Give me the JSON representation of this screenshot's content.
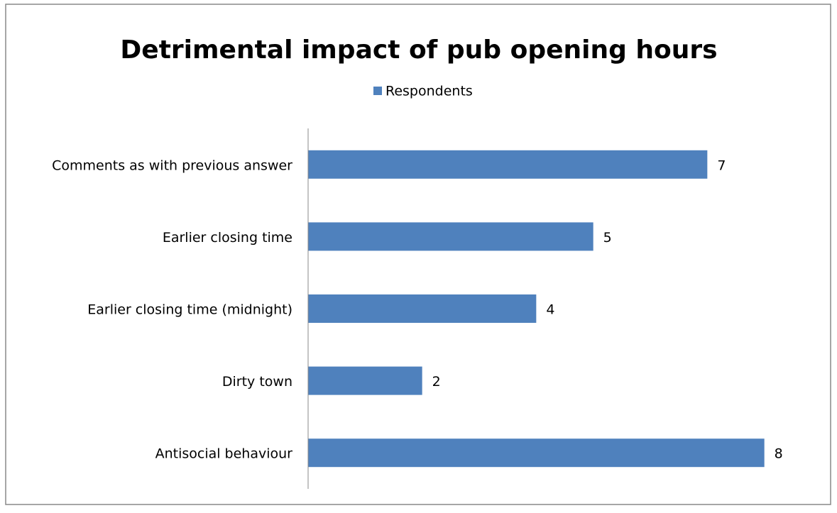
{
  "chart_data": {
    "type": "hbar",
    "title": "Detrimental impact of pub opening hours",
    "categories": [
      "Comments as with previous answer",
      "Earlier closing time",
      "Earlier closing time (midnight)",
      "Dirty town",
      "Antisocial behaviour"
    ],
    "series": [
      {
        "name": "Respondents",
        "color": "#4f81bd",
        "values": [
          7,
          5,
          4,
          2,
          8
        ]
      }
    ],
    "xlim": [
      0,
      9
    ],
    "legend": "top"
  }
}
